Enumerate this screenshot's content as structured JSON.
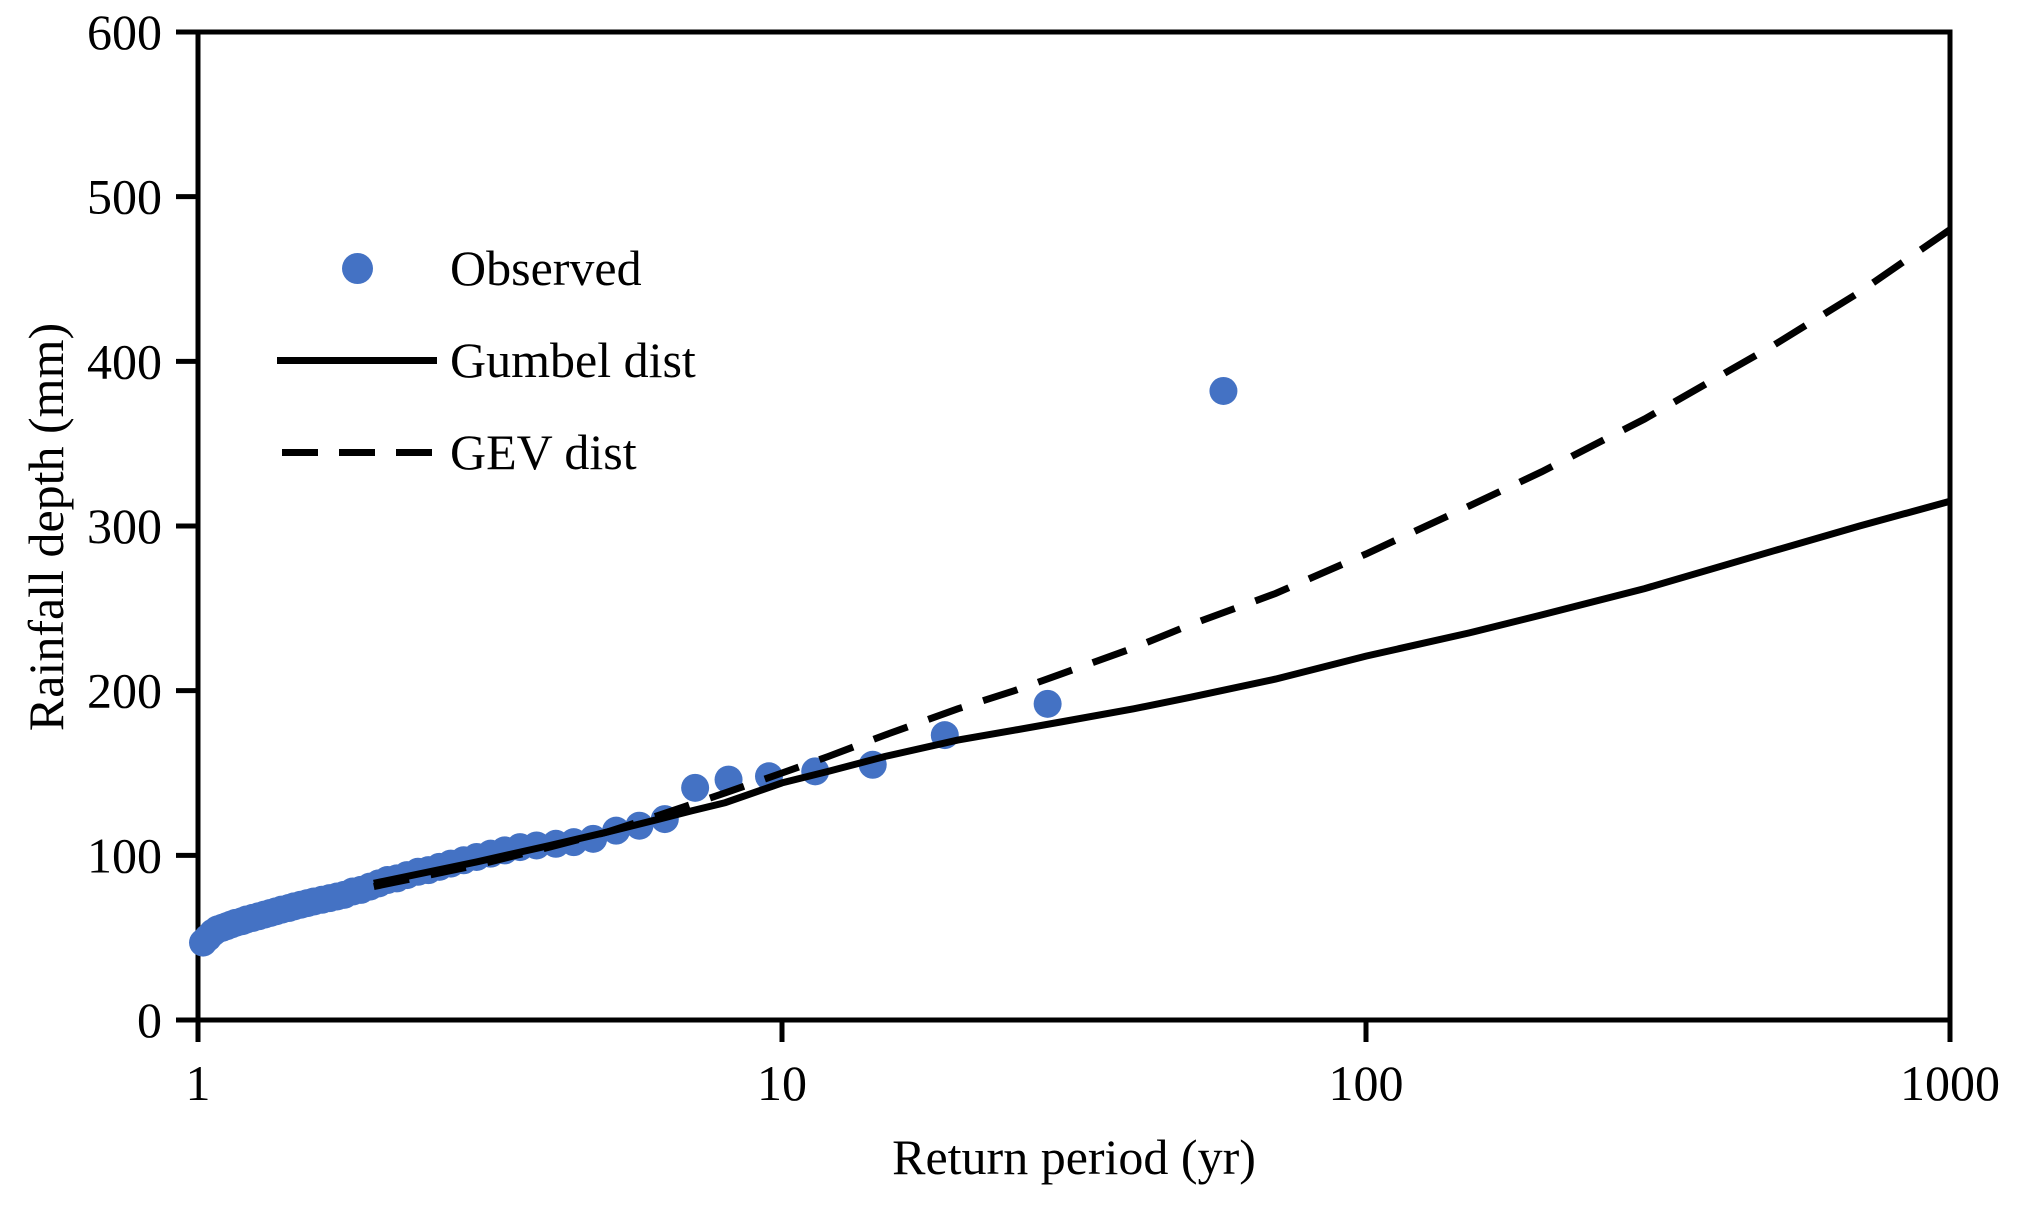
{
  "figure": {
    "background": "#ffffff",
    "x_axis_title": "Return period (yr)",
    "y_axis_title": "Rainfall depth (mm)"
  },
  "colors": {
    "observed_marker": "#4472C4",
    "line_color": "#000000",
    "axis_color": "#000000",
    "text_color": "#000000"
  },
  "legend": {
    "items": [
      {
        "label": "Observed",
        "marker": "dot",
        "color": "#4472C4"
      },
      {
        "label": "Gumbel dist",
        "marker": "solid-line",
        "color": "#000000"
      },
      {
        "label": "GEV dist",
        "marker": "dashed-line",
        "color": "#000000"
      }
    ]
  },
  "chart_data": {
    "type": "scatter",
    "title": "",
    "xlabel": "Return period (yr)",
    "ylabel": "Rainfall depth (mm)",
    "x_scale": "log",
    "xlim": [
      1,
      1000
    ],
    "x_ticks": [
      "1",
      "10",
      "100",
      "1000"
    ],
    "x_tick_values": [
      1,
      10,
      100,
      1000
    ],
    "ylim": [
      0,
      600
    ],
    "y_ticks": [
      "0",
      "100",
      "200",
      "300",
      "400",
      "500",
      "600"
    ],
    "y_tick_values": [
      0,
      100,
      200,
      300,
      400,
      500,
      600
    ],
    "grid": false,
    "legend_position": "upper-left-inside",
    "series": [
      {
        "name": "Observed",
        "type": "scatter",
        "color": "#4472C4",
        "points": [
          [
            57,
            382
          ],
          [
            28.5,
            192
          ],
          [
            19,
            173
          ],
          [
            14.3,
            155
          ],
          [
            11.4,
            151
          ],
          [
            9.5,
            148
          ],
          [
            8.1,
            146
          ],
          [
            7.1,
            141
          ],
          [
            6.3,
            122
          ],
          [
            5.7,
            118
          ],
          [
            5.2,
            115
          ],
          [
            4.75,
            110
          ],
          [
            4.4,
            108
          ],
          [
            4.1,
            107
          ],
          [
            3.8,
            106
          ],
          [
            3.56,
            105
          ],
          [
            3.35,
            103
          ],
          [
            3.17,
            101
          ],
          [
            3.0,
            99
          ],
          [
            2.85,
            97
          ],
          [
            2.71,
            95
          ],
          [
            2.59,
            93
          ],
          [
            2.48,
            91
          ],
          [
            2.38,
            90
          ],
          [
            2.28,
            88
          ],
          [
            2.19,
            86
          ],
          [
            2.11,
            85
          ],
          [
            2.04,
            83
          ],
          [
            1.97,
            81
          ],
          [
            1.9,
            79
          ],
          [
            1.84,
            78
          ],
          [
            1.78,
            76
          ],
          [
            1.73,
            75
          ],
          [
            1.68,
            74
          ],
          [
            1.63,
            73
          ],
          [
            1.58,
            72
          ],
          [
            1.54,
            71
          ],
          [
            1.5,
            70
          ],
          [
            1.46,
            69
          ],
          [
            1.43,
            68
          ],
          [
            1.39,
            67
          ],
          [
            1.36,
            66
          ],
          [
            1.33,
            65
          ],
          [
            1.3,
            64
          ],
          [
            1.27,
            63
          ],
          [
            1.24,
            62
          ],
          [
            1.21,
            61
          ],
          [
            1.19,
            60
          ],
          [
            1.16,
            59
          ],
          [
            1.14,
            58
          ],
          [
            1.12,
            57
          ],
          [
            1.1,
            56
          ],
          [
            1.08,
            55
          ],
          [
            1.06,
            53
          ],
          [
            1.04,
            50
          ],
          [
            1.02,
            47
          ]
        ]
      },
      {
        "name": "Gumbel dist",
        "type": "line",
        "line_style": "solid",
        "color": "#000000",
        "points": [
          [
            2,
            83
          ],
          [
            3,
            96
          ],
          [
            4,
            106
          ],
          [
            5,
            114
          ],
          [
            6,
            121
          ],
          [
            7,
            127
          ],
          [
            8,
            132
          ],
          [
            10,
            144
          ],
          [
            12,
            151
          ],
          [
            15,
            160
          ],
          [
            20,
            170
          ],
          [
            25,
            176
          ],
          [
            30,
            181
          ],
          [
            40,
            189
          ],
          [
            50,
            196
          ],
          [
            70,
            207
          ],
          [
            100,
            221
          ],
          [
            150,
            235
          ],
          [
            200,
            246
          ],
          [
            300,
            262
          ],
          [
            500,
            285
          ],
          [
            700,
            300
          ],
          [
            1000,
            315
          ]
        ]
      },
      {
        "name": "GEV dist",
        "type": "line",
        "line_style": "dashed",
        "color": "#000000",
        "points": [
          [
            2,
            81
          ],
          [
            3,
            94
          ],
          [
            4,
            105
          ],
          [
            5,
            114
          ],
          [
            6,
            123
          ],
          [
            7,
            131
          ],
          [
            8,
            138
          ],
          [
            10,
            150
          ],
          [
            12,
            160
          ],
          [
            15,
            173
          ],
          [
            20,
            189
          ],
          [
            25,
            200
          ],
          [
            30,
            210
          ],
          [
            40,
            226
          ],
          [
            50,
            240
          ],
          [
            70,
            259
          ],
          [
            100,
            283
          ],
          [
            150,
            312
          ],
          [
            200,
            333
          ],
          [
            300,
            365
          ],
          [
            500,
            410
          ],
          [
            700,
            442
          ],
          [
            1000,
            480
          ]
        ]
      }
    ]
  }
}
